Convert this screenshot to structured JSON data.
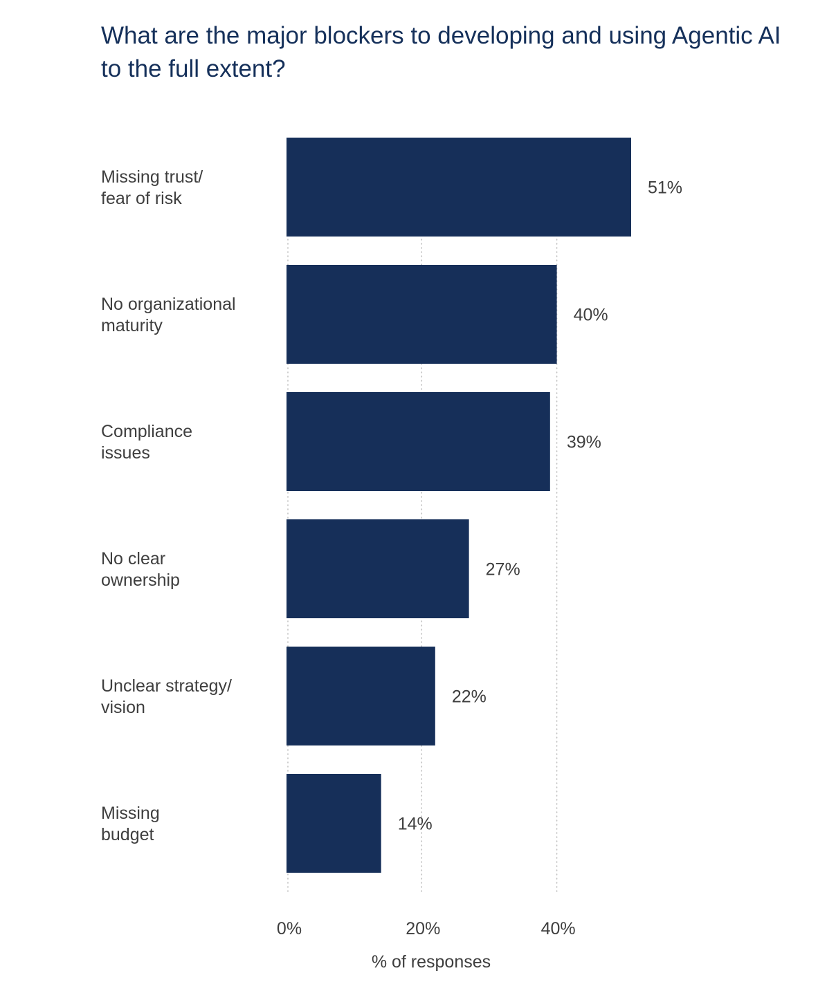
{
  "chart_data": {
    "type": "bar",
    "orientation": "horizontal",
    "title": "What are the major blockers to developing and using Agentic AI to the full extent?",
    "xlabel": "% of responses",
    "ylabel": "",
    "xlim": [
      0,
      51
    ],
    "xticks": [
      0,
      20,
      40
    ],
    "xtick_labels": [
      "0%",
      "20%",
      "40%"
    ],
    "grid": true,
    "categories": [
      [
        "Missing trust/",
        "fear of risk"
      ],
      [
        "No organizational",
        "maturity"
      ],
      [
        "Compliance",
        "issues"
      ],
      [
        "No clear",
        "ownership"
      ],
      [
        "Unclear strategy/",
        "vision"
      ],
      [
        "Missing",
        "budget"
      ]
    ],
    "values": [
      51,
      40,
      39,
      27,
      22,
      14
    ],
    "value_labels": [
      "51%",
      "40%",
      "39%",
      "27%",
      "22%",
      "14%"
    ],
    "colors": {
      "bar": "#162f59",
      "title": "#15305a",
      "text": "#3e3e3e",
      "grid": "#bdbdbd"
    }
  }
}
